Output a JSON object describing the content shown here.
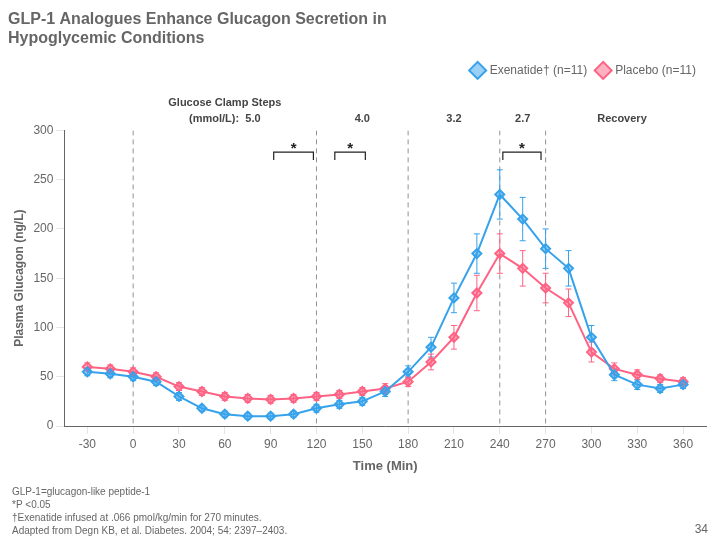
{
  "chart_data": {
    "type": "line",
    "title": [
      "GLP-1 Analogues Enhance Glucagon Secretion in",
      "Hypoglycemic Conditions"
    ],
    "xlabel": "Time (Min)",
    "ylabel": "Plasma Glucagon (ng/L)",
    "x": [
      -30,
      -15,
      0,
      15,
      30,
      45,
      60,
      75,
      90,
      105,
      120,
      135,
      150,
      165,
      180,
      195,
      210,
      225,
      240,
      255,
      270,
      285,
      300,
      315,
      330,
      345,
      360
    ],
    "series": [
      {
        "name": "Exenatide† (n=11)",
        "marker": "diamond",
        "values": [
          55,
          53,
          50,
          45,
          30,
          18,
          12,
          10,
          10,
          12,
          18,
          22,
          25,
          35,
          55,
          80,
          130,
          175,
          235,
          210,
          180,
          160,
          90,
          52,
          42,
          38,
          42
        ],
        "errors": [
          4,
          4,
          4,
          4,
          4,
          3,
          3,
          3,
          3,
          3,
          4,
          4,
          4,
          5,
          6,
          10,
          15,
          20,
          25,
          22,
          20,
          18,
          12,
          6,
          5,
          4,
          4
        ]
      },
      {
        "name": "Placebo (n=11)",
        "marker": "diamond",
        "values": [
          60,
          58,
          55,
          50,
          40,
          35,
          30,
          28,
          27,
          28,
          30,
          32,
          35,
          38,
          45,
          65,
          90,
          135,
          175,
          160,
          140,
          125,
          75,
          58,
          52,
          48,
          45
        ],
        "errors": [
          4,
          4,
          4,
          4,
          4,
          4,
          4,
          4,
          4,
          4,
          4,
          4,
          4,
          5,
          5,
          8,
          12,
          18,
          20,
          18,
          15,
          14,
          10,
          6,
          5,
          4,
          4
        ]
      }
    ],
    "xlim": [
      -45,
      375
    ],
    "xticks": [
      -30,
      0,
      30,
      60,
      90,
      120,
      150,
      180,
      210,
      240,
      270,
      300,
      330,
      360
    ],
    "ylim": [
      0,
      300
    ],
    "yticks": [
      0,
      50,
      100,
      150,
      200,
      250,
      300
    ],
    "grid": false,
    "legend": "upper right",
    "vlines": [
      0,
      120,
      180,
      240,
      270
    ],
    "clamp_header": "Glucose Clamp Steps",
    "clamp_labels": [
      {
        "x": 60,
        "text": "(mmol/L):  5.0"
      },
      {
        "x": 150,
        "text": "4.0"
      },
      {
        "x": 210,
        "text": "3.2"
      },
      {
        "x": 255,
        "text": "2.7"
      },
      {
        "x": 320,
        "text": "Recovery"
      }
    ],
    "brackets": [
      {
        "x1": 92,
        "x2": 118,
        "y": 278,
        "text": "*"
      },
      {
        "x1": 132,
        "x2": 152,
        "y": 278,
        "text": "*"
      },
      {
        "x1": 242,
        "x2": 267,
        "y": 278,
        "text": "*"
      }
    ],
    "footnotes": [
      "GLP-1=glucagon-like peptide-1",
      "*P <0.05",
      "†Exenatide infused at .066 pmol/kg/min for 270 minutes.",
      "Adapted from Degn KB, et al. Diabetes. 2004; 54: 2397–2403."
    ],
    "page_number": "34"
  }
}
